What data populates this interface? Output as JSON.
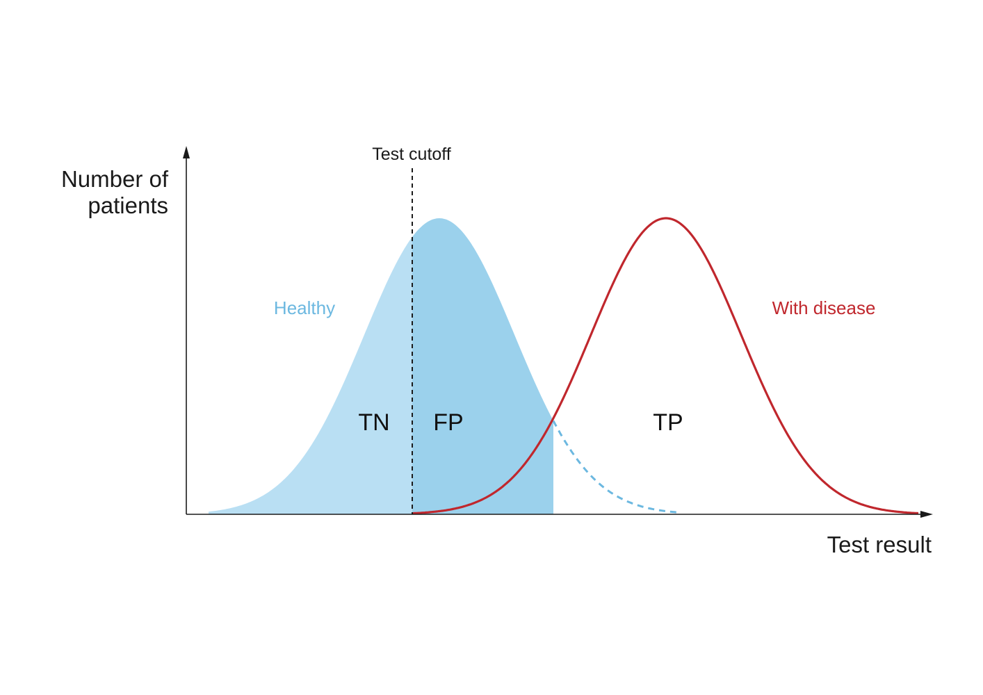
{
  "axes": {
    "y_label_lines": [
      "Number of",
      "patients"
    ],
    "x_label": "Test result"
  },
  "cutoff": {
    "label": "Test cutoff"
  },
  "populations": {
    "healthy": {
      "label": "Healthy",
      "color": "#6cb8e0",
      "fill_light": "#b9dff3",
      "fill_dark": "#9bd1ec",
      "dashed_tail_color": "#6cb8e0"
    },
    "disease": {
      "label": "With disease",
      "color": "#c0272d"
    }
  },
  "regions": {
    "tn": "TN",
    "fp": "FP",
    "tp": "TP"
  },
  "colors": {
    "axis": "#1a1a1a",
    "text": "#111111",
    "background": "#ffffff"
  }
}
